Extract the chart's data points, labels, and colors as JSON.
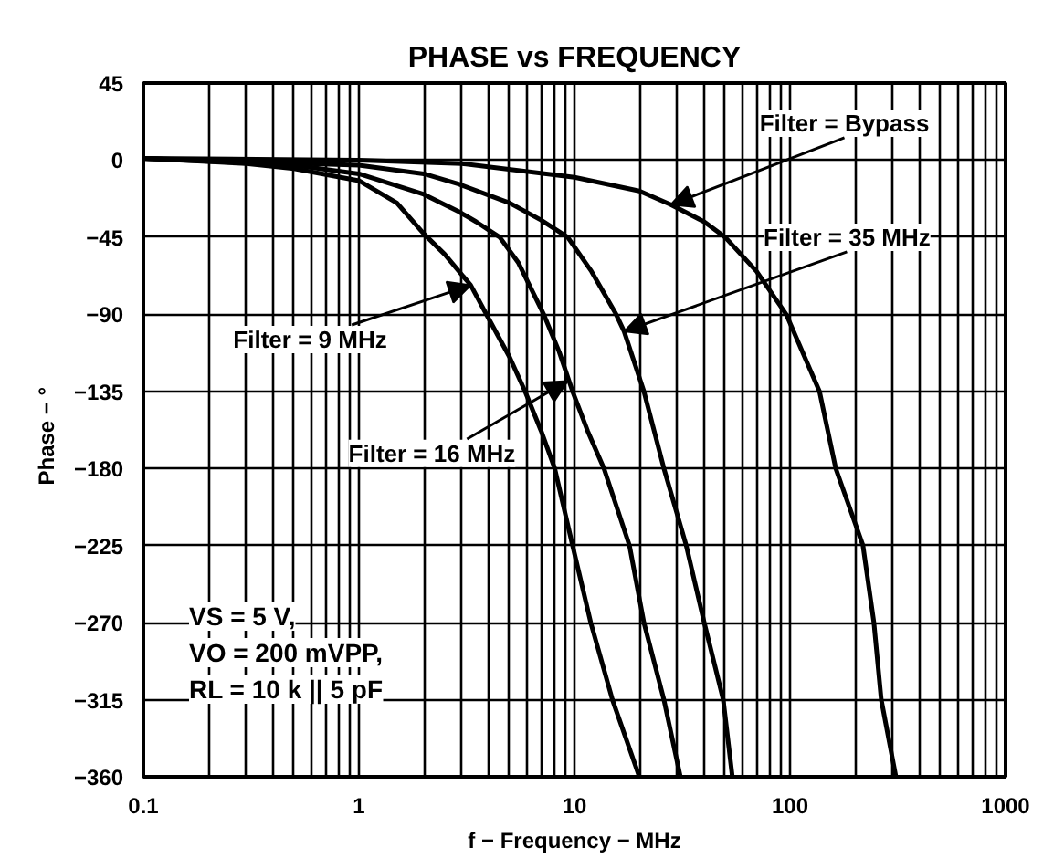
{
  "chart_data": {
    "type": "line",
    "title": "PHASE vs FREQUENCY",
    "xlabel": "f − Frequency − MHz",
    "ylabel": "Phase  −  °",
    "log": "x",
    "grid": true,
    "line_style": "solid",
    "marker": "none",
    "xlim": [
      0.1,
      1000
    ],
    "ylim": [
      -360,
      45
    ],
    "xticks": [
      0.1,
      1,
      10,
      100,
      1000
    ],
    "yticks": [
      45,
      0,
      -45,
      -90,
      -135,
      -180,
      -225,
      -270,
      -315,
      -360
    ],
    "series": [
      {
        "color": "#000000",
        "x": [
          0.1,
          0.3,
          0.5,
          1,
          1.5,
          2,
          2.5,
          3.3,
          4.1,
          5,
          5.9,
          7,
          8.1,
          9.8,
          11.9,
          15,
          20
        ],
        "values": [
          1,
          -2,
          -5,
          -12,
          -25,
          -43,
          -55,
          -73,
          -95,
          -115,
          -135,
          -158,
          -180,
          -225,
          -270,
          -315,
          -360
        ]
      },
      {
        "color": "#000000",
        "x": [
          0.1,
          0.5,
          1,
          2,
          2.9,
          3.5,
          4.5,
          5.5,
          7.2,
          8.5,
          9.8,
          11.5,
          13.7,
          18,
          21,
          26,
          31
        ],
        "values": [
          1,
          -3,
          -8,
          -20,
          -30,
          -36,
          -45,
          -60,
          -90,
          -112,
          -135,
          -158,
          -180,
          -225,
          -270,
          -315,
          -360
        ]
      },
      {
        "color": "#000000",
        "x": [
          0.1,
          1,
          2,
          2.9,
          5,
          7,
          9.3,
          12,
          15.6,
          17,
          21,
          26,
          33,
          40,
          49,
          54
        ],
        "values": [
          1,
          -3,
          -8,
          -14,
          -25,
          -35,
          -45,
          -65,
          -90,
          -100,
          -135,
          -180,
          -225,
          -270,
          -315,
          -360
        ]
      },
      {
        "color": "#000000",
        "x": [
          0.1,
          1,
          3,
          10,
          20,
          28,
          40,
          50,
          70,
          96,
          137,
          163,
          218,
          245,
          265,
          310
        ],
        "values": [
          1,
          0,
          -2,
          -10,
          -18,
          -26,
          -36,
          -45,
          -65,
          -90,
          -135,
          -180,
          -225,
          -270,
          -315,
          -360
        ]
      }
    ],
    "annotations": [
      {
        "text": "Filter = 9 MHz",
        "x": 3.3,
        "y": -73
      },
      {
        "text": "Filter = 16 MHz",
        "x": 9.3,
        "y": -129
      },
      {
        "text": "Filter = 35 MHz",
        "x": 17,
        "y": -100
      },
      {
        "text": "Filter = Bypass",
        "x": 28,
        "y": -26
      },
      "VS = 5 V,",
      "VO = 200 mVPP,",
      "RL = 10 k || 5 pF"
    ]
  }
}
